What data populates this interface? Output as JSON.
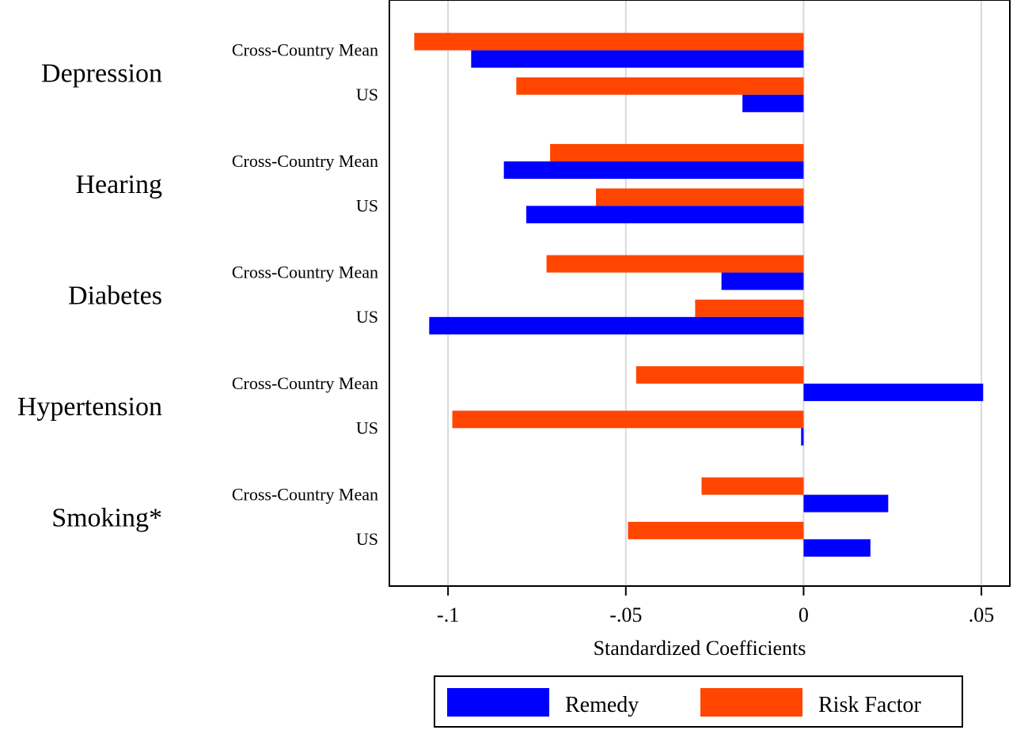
{
  "chart_data": {
    "type": "bar",
    "orientation": "horizontal",
    "xlabel": "Standardized Coefficients",
    "xlim": [
      -0.1165,
      0.058
    ],
    "xticks": [
      -0.1,
      -0.05,
      0,
      0.05
    ],
    "xtick_labels": [
      "-.1",
      "-.05",
      "0",
      ".05"
    ],
    "grid": true,
    "legend_position": "bottom",
    "series": [
      {
        "name": "Remedy",
        "color": "#0000ff"
      },
      {
        "name": "Risk Factor",
        "color": "#ff4500"
      }
    ],
    "groups": [
      {
        "label": "Depression",
        "rows": [
          {
            "label": "Cross-Country Mean",
            "remedy": -0.0935,
            "risk_factor": -0.1095
          },
          {
            "label": "US",
            "remedy": -0.0172,
            "risk_factor": -0.0808
          }
        ]
      },
      {
        "label": "Hearing",
        "rows": [
          {
            "label": "Cross-Country Mean",
            "remedy": -0.0843,
            "risk_factor": -0.0713
          },
          {
            "label": "US",
            "remedy": -0.078,
            "risk_factor": -0.0584
          }
        ]
      },
      {
        "label": "Diabetes",
        "rows": [
          {
            "label": "Cross-Country Mean",
            "remedy": -0.0231,
            "risk_factor": -0.0723
          },
          {
            "label": "US",
            "remedy": -0.1053,
            "risk_factor": -0.0305
          }
        ]
      },
      {
        "label": "Hypertension",
        "rows": [
          {
            "label": "Cross-Country Mean",
            "remedy": 0.0505,
            "risk_factor": -0.0471
          },
          {
            "label": "US",
            "remedy": -0.0007,
            "risk_factor": -0.0988
          }
        ]
      },
      {
        "label": "Smoking*",
        "rows": [
          {
            "label": "Cross-Country Mean",
            "remedy": 0.0238,
            "risk_factor": -0.0287
          },
          {
            "label": "US",
            "remedy": 0.0188,
            "risk_factor": -0.0494
          }
        ]
      }
    ]
  }
}
